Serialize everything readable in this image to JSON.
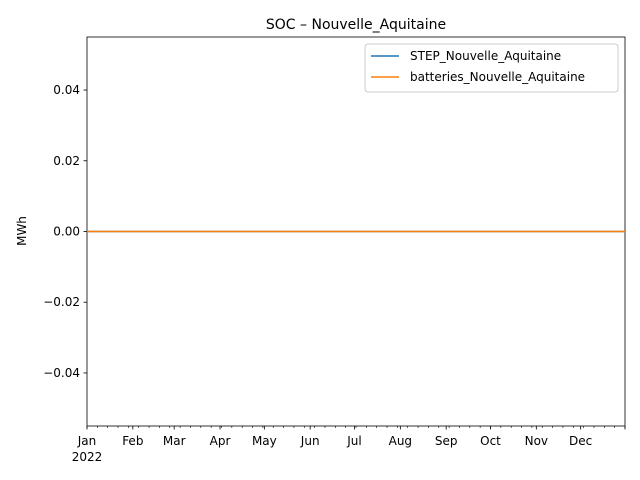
{
  "chart_data": {
    "type": "line",
    "title": "SOC – Nouvelle_Aquitaine",
    "xlabel": "",
    "ylabel": "MWh",
    "x_ticks": [
      "Jan",
      "Feb",
      "Mar",
      "Apr",
      "May",
      "Jun",
      "Jul",
      "Aug",
      "Sep",
      "Oct",
      "Nov",
      "Dec"
    ],
    "x_year_label": "2022",
    "x_range": [
      "2022-01-01",
      "2022-12-31"
    ],
    "ylim": [
      -0.055,
      0.055
    ],
    "y_ticks": [
      "−0.04",
      "−0.02",
      "0.00",
      "0.02",
      "0.04"
    ],
    "y_tick_values": [
      -0.04,
      -0.02,
      0.0,
      0.02,
      0.04
    ],
    "grid": false,
    "legend_position": "upper right",
    "series": [
      {
        "name": "STEP_Nouvelle_Aquitaine",
        "color": "#1f77b4",
        "x": [
          "2022-01-01",
          "2022-12-31"
        ],
        "y": [
          0.0,
          0.0
        ]
      },
      {
        "name": "batteries_Nouvelle_Aquitaine",
        "color": "#ff7f0e",
        "x": [
          "2022-01-01",
          "2022-12-31"
        ],
        "y": [
          0.0,
          0.0
        ]
      }
    ]
  }
}
